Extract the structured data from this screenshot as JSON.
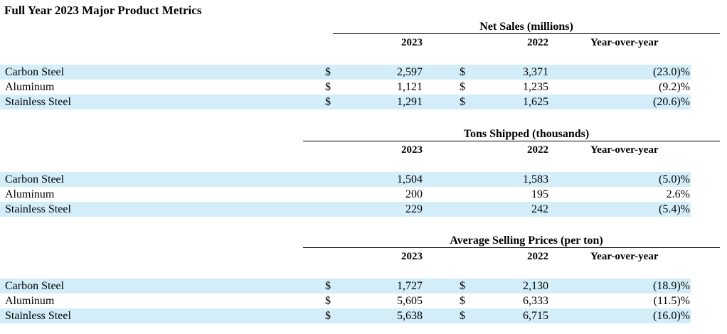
{
  "page_title": "Full Year 2023 Major Product Metrics",
  "columns": {
    "y2023": "2023",
    "y2022": "2022",
    "yoy": "Year-over-year"
  },
  "sections": [
    {
      "title": "Net Sales (millions)",
      "rows": [
        {
          "label": "Carbon Steel",
          "cur_2023": "$",
          "v2023": "2,597",
          "cur_2022": "$",
          "v2022": "3,371",
          "yoy": "(23.0)%"
        },
        {
          "label": "Aluminum",
          "cur_2023": "$",
          "v2023": "1,121",
          "cur_2022": "$",
          "v2022": "1,235",
          "yoy": "(9.2)%"
        },
        {
          "label": "Stainless Steel",
          "cur_2023": "$",
          "v2023": "1,291",
          "cur_2022": "$",
          "v2022": "1,625",
          "yoy": "(20.6)%"
        }
      ]
    },
    {
      "title": "Tons Shipped (thousands)",
      "rows": [
        {
          "label": "Carbon Steel",
          "cur_2023": "",
          "v2023": "1,504",
          "cur_2022": "",
          "v2022": "1,583",
          "yoy": "(5.0)%"
        },
        {
          "label": "Aluminum",
          "cur_2023": "",
          "v2023": "200",
          "cur_2022": "",
          "v2022": "195",
          "yoy": "2.6%"
        },
        {
          "label": "Stainless Steel",
          "cur_2023": "",
          "v2023": "229",
          "cur_2022": "",
          "v2022": "242",
          "yoy": "(5.4)%"
        }
      ]
    },
    {
      "title": "Average Selling Prices (per ton)",
      "rows": [
        {
          "label": "Carbon Steel",
          "cur_2023": "$",
          "v2023": "1,727",
          "cur_2022": "$",
          "v2022": "2,130",
          "yoy": "(18.9)%"
        },
        {
          "label": "Aluminum",
          "cur_2023": "$",
          "v2023": "5,605",
          "cur_2022": "$",
          "v2022": "6,333",
          "yoy": "(11.5)%"
        },
        {
          "label": "Stainless Steel",
          "cur_2023": "$",
          "v2023": "5,638",
          "cur_2022": "$",
          "v2022": "6,715",
          "yoy": "(16.0)%"
        }
      ]
    }
  ],
  "colors": {
    "row_shade": "#d3eef9",
    "text": "#000000",
    "background": "#ffffff"
  }
}
